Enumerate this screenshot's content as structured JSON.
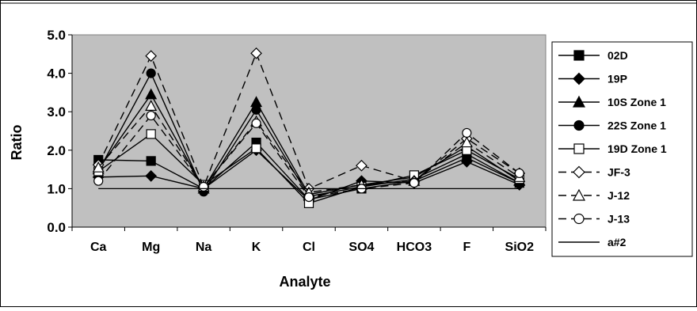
{
  "chart_data": {
    "type": "line",
    "title": "",
    "xlabel": "Analyte",
    "ylabel": "Ratio",
    "ylim": [
      0,
      5
    ],
    "yticks": [
      "0.0",
      "1.0",
      "2.0",
      "3.0",
      "4.0",
      "5.0"
    ],
    "categories": [
      "Ca",
      "Mg",
      "Na",
      "K",
      "Cl",
      "SO4",
      "HCO3",
      "F",
      "SiO2"
    ],
    "grid": false,
    "legend": "right",
    "plot_bg": "#c0c0c0",
    "series": [
      {
        "name": "02D",
        "marker": "square-filled",
        "dash": false,
        "values": [
          1.75,
          1.72,
          1.0,
          2.2,
          0.72,
          1.0,
          1.2,
          1.8,
          1.15
        ]
      },
      {
        "name": "19P",
        "marker": "diamond-filled",
        "dash": false,
        "values": [
          1.3,
          1.33,
          1.0,
          2.0,
          0.7,
          1.2,
          1.15,
          1.7,
          1.1
        ]
      },
      {
        "name": "10S Zone 1",
        "marker": "triangle-filled",
        "dash": false,
        "values": [
          1.5,
          3.45,
          1.0,
          3.25,
          0.85,
          1.1,
          1.3,
          2.1,
          1.2
        ]
      },
      {
        "name": "22S Zone 1",
        "marker": "circle-filled",
        "dash": false,
        "values": [
          1.45,
          4.0,
          0.92,
          3.05,
          0.8,
          1.05,
          1.25,
          1.9,
          1.15
        ]
      },
      {
        "name": "19D Zone 1",
        "marker": "square-open",
        "dash": false,
        "values": [
          1.45,
          2.42,
          1.1,
          2.05,
          0.62,
          1.05,
          1.35,
          2.0,
          1.25
        ]
      },
      {
        "name": "JF-3",
        "marker": "diamond-open",
        "dash": true,
        "values": [
          1.62,
          4.45,
          1.05,
          4.52,
          1.0,
          1.6,
          1.2,
          2.3,
          1.4
        ]
      },
      {
        "name": "J-12",
        "marker": "triangle-open",
        "dash": true,
        "values": [
          1.55,
          3.15,
          1.05,
          2.75,
          0.9,
          1.1,
          1.2,
          2.2,
          1.3
        ]
      },
      {
        "name": "J-13",
        "marker": "circle-open",
        "dash": true,
        "values": [
          1.2,
          2.9,
          1.05,
          2.7,
          0.78,
          1.0,
          1.15,
          2.45,
          1.4
        ]
      },
      {
        "name": "a#2",
        "marker": "none",
        "dash": false,
        "values": [
          1,
          1,
          1,
          1,
          1,
          1,
          1,
          1,
          1
        ]
      }
    ]
  }
}
